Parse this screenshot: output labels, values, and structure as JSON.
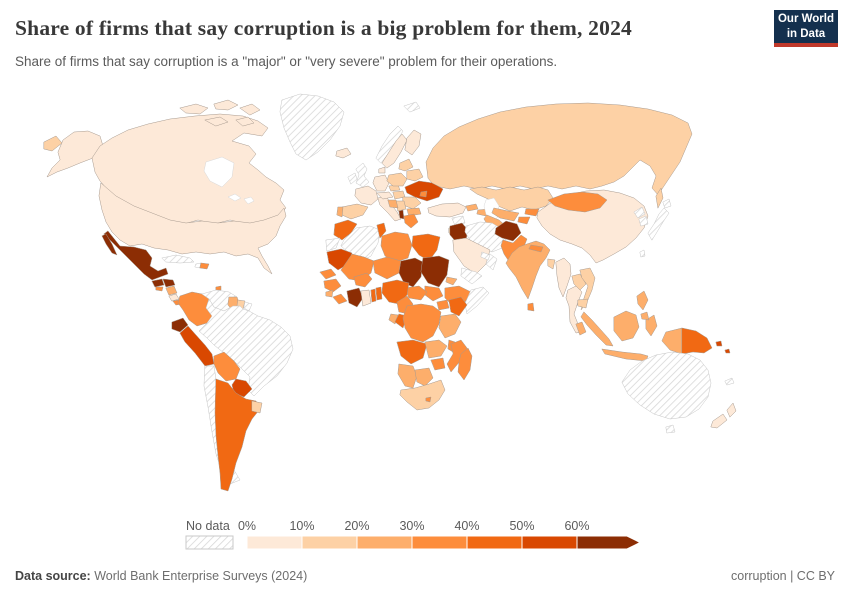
{
  "title": "Share of firms that say corruption is a big problem for them, 2024",
  "subtitle": "Share of firms that say corruption is a \"major\" or \"very severe\" problem for their operations.",
  "logo": {
    "line1": "Our World",
    "line2": "in Data"
  },
  "footer": {
    "source_label": "Data source:",
    "source_value": " World Bank Enterprise Surveys (2024)",
    "note": "corruption | CC BY"
  },
  "legend": {
    "no_data_label": "No data",
    "tick_labels": [
      "0%",
      "10%",
      "20%",
      "30%",
      "40%",
      "50%",
      "60%"
    ]
  },
  "chart_data": {
    "type": "choropleth",
    "title": "Share of firms that say corruption is a big problem for them, 2024",
    "unit": "% of firms",
    "bin_breaks": [
      0,
      10,
      20,
      30,
      40,
      50,
      60
    ],
    "bins": [
      "0-10",
      "10-20",
      "20-30",
      "30-40",
      "40-50",
      "50-60",
      "60+"
    ],
    "bin_colors": {
      "0-10": "#FDE9D8",
      "10-20": "#FDD1A5",
      "20-30": "#FDAE6B",
      "30-40": "#FD8D3C",
      "40-50": "#F16913",
      "50-60": "#D94801",
      "60+": "#8C2D04"
    },
    "no_data_style": "diagonal-hatch",
    "values": {
      "united-states": "0-10",
      "canada": "0-10",
      "greenland": "no-data",
      "mexico": "60+",
      "guatemala": "60+",
      "honduras": "60+",
      "el-salvador": "30-40",
      "nicaragua": "20-30",
      "costa-rica": "0-10",
      "panama": "30-40",
      "cuba": "no-data",
      "haiti": "no-data",
      "dominican-republic": "30-40",
      "trinidad-and-tobago": "30-40",
      "colombia": "30-40",
      "venezuela": "no-data",
      "guyana": "20-30",
      "suriname": "10-20",
      "french-guiana": "no-data",
      "ecuador": "60+",
      "peru": "50-60",
      "brazil": "no-data",
      "bolivia": "30-40",
      "paraguay": "50-60",
      "chile": "no-data",
      "argentina": "40-50",
      "uruguay": "10-20",
      "iceland": "0-10",
      "norway": "no-data",
      "sweden": "0-10",
      "finland": "0-10",
      "denmark": "0-10",
      "united-kingdom": "no-data",
      "ireland": "no-data",
      "france": "0-10",
      "germany": "0-10",
      "spain": "10-20",
      "portugal": "20-30",
      "italy": "0-10",
      "austria": "0-10",
      "czechia": "10-20",
      "poland": "10-20",
      "baltics": "10-20",
      "belarus": "10-20",
      "ukraine": "50-60",
      "hungary": "10-20",
      "romania": "10-20",
      "moldova": "30-40",
      "serbia": "10-20",
      "bosnia-and-herzegovina": "20-30",
      "bulgaria": "20-30",
      "albania": "60+",
      "greece": "30-40",
      "turkey": "0-10",
      "svalbard": "no-data",
      "russia": "10-20",
      "kazakhstan": "10-20",
      "uzbekistan": "20-30",
      "turkmenistan": "20-30",
      "kyrgyzstan": "30-40",
      "tajikistan": "30-40",
      "georgia": "20-30",
      "azerbaijan": "20-30",
      "syria": "no-data",
      "israel": "10-20",
      "jordan": "20-30",
      "iraq": "60+",
      "iran": "no-data",
      "saudi-arabia": "0-10",
      "yemen": "no-data",
      "oman": "no-data",
      "united-arab-emirates": "no-data",
      "afghanistan": "60+",
      "pakistan": "30-40",
      "india": "20-30",
      "nepal": "30-40",
      "sri-lanka": "30-40",
      "bangladesh": "10-20",
      "china": "0-10",
      "mongolia": "30-40",
      "north-korea": "no-data",
      "south-korea": "no-data",
      "japan": "no-data",
      "taiwan": "no-data",
      "myanmar": "0-10",
      "laos": "10-20",
      "thailand": "0-10",
      "vietnam": "10-20",
      "cambodia": "10-20",
      "malaysia": "20-30",
      "indonesia": "20-30",
      "philippines": "20-30",
      "papua-new-guinea": "40-50",
      "solomon-islands": "50-60",
      "timor-leste": "30-40",
      "morocco": "40-50",
      "western-sahara": "no-data",
      "algeria": "no-data",
      "tunisia": "40-50",
      "libya": "30-40",
      "egypt": "40-50",
      "mauritania": "50-60",
      "mali": "30-40",
      "senegal": "30-40",
      "guinea": "30-40",
      "sierra-leone": "20-30",
      "liberia": "30-40",
      "burkina-faso": "30-40",
      "cote-divoire": "60+",
      "ghana": "0-10",
      "togo": "40-50",
      "benin": "40-50",
      "niger": "30-40",
      "nigeria": "40-50",
      "chad": "60+",
      "sudan": "60+",
      "eritrea": "20-30",
      "ethiopia": "30-40",
      "somalia": "no-data",
      "south-sudan": "30-40",
      "central-african-republic": "30-40",
      "cameroon": "30-40",
      "uganda": "30-40",
      "kenya": "40-50",
      "gabon": "20-30",
      "congo": "40-50",
      "democratic-republic-of-congo": "30-40",
      "tanzania": "20-30",
      "angola": "40-50",
      "zambia": "20-30",
      "malawi": "30-40",
      "mozambique": "30-40",
      "zimbabwe": "30-40",
      "namibia": "20-30",
      "botswana": "20-30",
      "south-africa": "10-20",
      "lesotho": "30-40",
      "madagascar": "30-40",
      "australia": "no-data",
      "new-zealand": "0-10",
      "new-caledonia": "no-data"
    }
  }
}
